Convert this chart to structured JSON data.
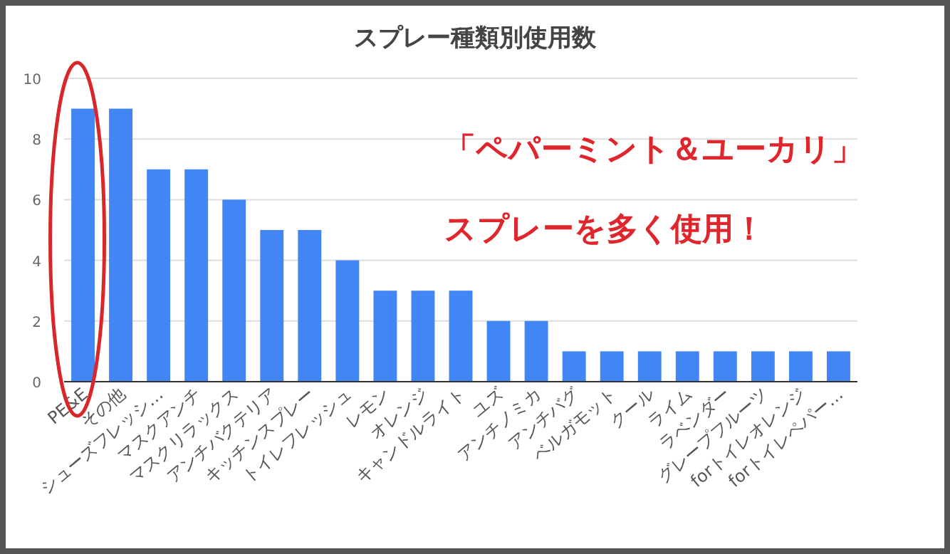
{
  "chart_data": {
    "type": "bar",
    "title": "スプレー種類別使用数",
    "categories": [
      "PE&E",
      "その他",
      "シューズフレッシ…",
      "マスクアンチ",
      "マスクリラックス",
      "アンチバクテリア",
      "キッチンスプレー",
      "トイレフレッシュ",
      "レモン",
      "オレンジ",
      "キャンドルライト",
      "ユズ",
      "アンチノミカ",
      "アンチバグ",
      "ベルガモット",
      "クール",
      "ライム",
      "ラベンダー",
      "グレープフルーツ",
      "forトイレオレンジ",
      "forトイレペパー…"
    ],
    "values": [
      9,
      9,
      7,
      7,
      6,
      5,
      5,
      4,
      3,
      3,
      3,
      2,
      2,
      1,
      1,
      1,
      1,
      1,
      1,
      1,
      1
    ],
    "color": "#4285f4",
    "ylim": [
      0,
      10
    ],
    "yticks": [
      0,
      2,
      4,
      6,
      8,
      10
    ],
    "grid": "y",
    "annotations": [
      "「ペパーミント＆ユーカリ」",
      "スプレーを多く使用！"
    ]
  }
}
